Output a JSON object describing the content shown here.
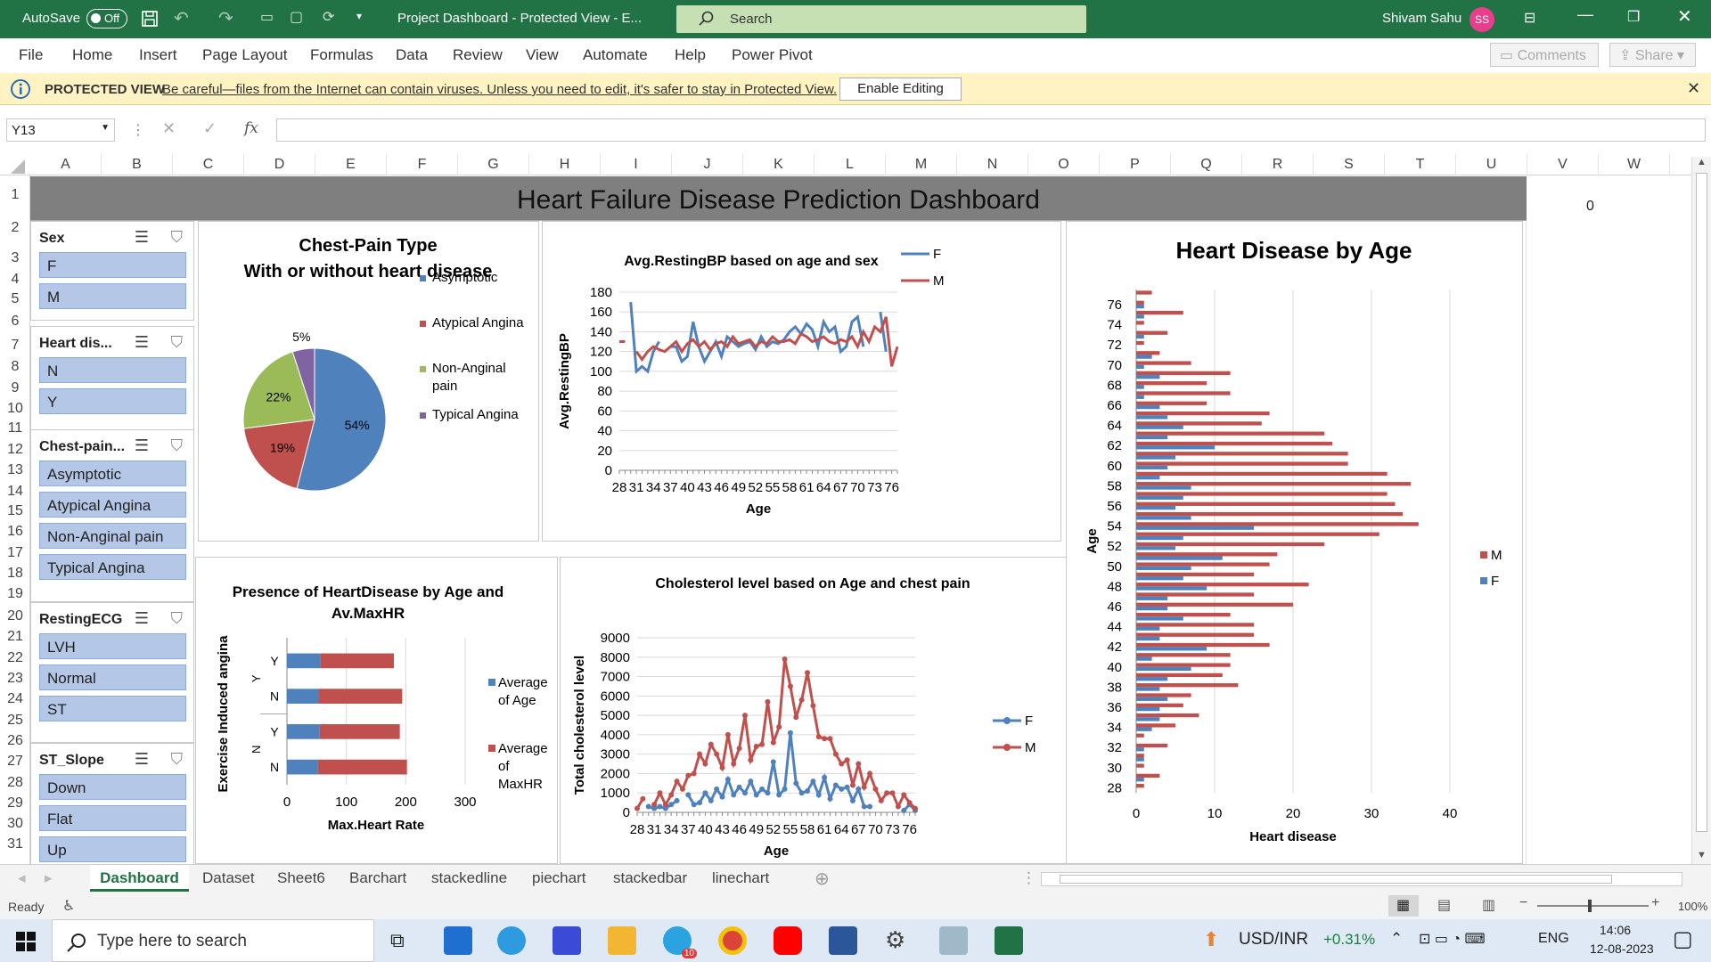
{
  "titlebar": {
    "autosave": "AutoSave",
    "toggle": "Off",
    "doc": "Project Dashboard  -  Protected View  -  E...",
    "search": "Search",
    "user": "Shivam Sahu",
    "initials": "SS"
  },
  "ribbon": {
    "tabs": [
      "File",
      "Home",
      "Insert",
      "Page Layout",
      "Formulas",
      "Data",
      "Review",
      "View",
      "Automate",
      "Help",
      "Power Pivot"
    ],
    "comments": "Comments",
    "share": "Share"
  },
  "protected": {
    "label": "PROTECTED VIEW",
    "message": "Be careful—files from the Internet can contain viruses. Unless you need to edit, it's safer to stay in Protected View.",
    "button": "Enable Editing"
  },
  "formula": {
    "namebox": "Y13",
    "fx": "fx",
    "value": ""
  },
  "columns": [
    "A",
    "B",
    "C",
    "D",
    "E",
    "F",
    "G",
    "H",
    "I",
    "J",
    "K",
    "L",
    "M",
    "N",
    "O",
    "P",
    "Q",
    "R",
    "S",
    "T",
    "U",
    "V",
    "W"
  ],
  "rows": [
    "1",
    "2",
    "3",
    "4",
    "5",
    "6",
    "7",
    "8",
    "9",
    "10",
    "11",
    "12",
    "13",
    "14",
    "15",
    "16",
    "17",
    "18",
    "19",
    "20",
    "21",
    "22",
    "23",
    "24",
    "25",
    "26",
    "27",
    "28",
    "29",
    "30",
    "31"
  ],
  "dashboard_title": "Heart Failure Disease Prediction Dashboard",
  "cell_v1": "0",
  "slicers": [
    {
      "title": "Sex",
      "items": [
        "F",
        "M"
      ]
    },
    {
      "title": "Heart dis...",
      "items": [
        "N",
        "Y"
      ]
    },
    {
      "title": "Chest-pain...",
      "items": [
        "Asymptotic",
        "Atypical Angina",
        "Non-Anginal pain",
        "Typical Angina"
      ]
    },
    {
      "title": "RestingECG",
      "items": [
        "LVH",
        "Normal",
        "ST"
      ]
    },
    {
      "title": "ST_Slope",
      "items": [
        "Down",
        "Flat",
        "Up"
      ]
    }
  ],
  "chart_data": [
    {
      "type": "pie",
      "title": "Chest-Pain Type\nWith or without heart disease",
      "title_lines": [
        "Chest-Pain Type",
        "With or without heart disease"
      ],
      "slices": [
        {
          "label": "Asymptotic",
          "value": 54,
          "color": "#4f81bd"
        },
        {
          "label": "Atypical Angina",
          "value": 19,
          "color": "#c0504d"
        },
        {
          "label": "Non-Anginal pain",
          "value": 22,
          "color": "#9bbb59"
        },
        {
          "label": "Typical Angina",
          "value": 5,
          "color": "#8064a2"
        }
      ],
      "data_labels": [
        "54%",
        "19%",
        "22%",
        "5%"
      ],
      "legend": "right"
    },
    {
      "type": "line",
      "title": "Avg.RestingBP based on age and sex",
      "xlabel": "Age",
      "ylabel": "Avg.RestingBP",
      "ylim": [
        0,
        180
      ],
      "yticks": [
        "0",
        "20",
        "40",
        "60",
        "80",
        "100",
        "120",
        "140",
        "160",
        "180"
      ],
      "xticks": [
        "28",
        "31",
        "34",
        "37",
        "40",
        "43",
        "46",
        "49",
        "52",
        "55",
        "58",
        "61",
        "64",
        "67",
        "70",
        "73",
        "76"
      ],
      "x": [
        28,
        29,
        30,
        31,
        32,
        33,
        34,
        35,
        36,
        37,
        38,
        39,
        40,
        41,
        42,
        43,
        44,
        45,
        46,
        47,
        48,
        49,
        50,
        51,
        52,
        53,
        54,
        55,
        56,
        57,
        58,
        59,
        60,
        61,
        62,
        63,
        64,
        65,
        66,
        67,
        68,
        69,
        70,
        71,
        72,
        73,
        74,
        75,
        76,
        77
      ],
      "series": [
        {
          "name": "F",
          "color": "#4f81bd",
          "values": [
            null,
            null,
            170,
            100,
            105,
            100,
            120,
            130,
            null,
            125,
            125,
            110,
            115,
            150,
            125,
            110,
            120,
            130,
            115,
            135,
            130,
            125,
            128,
            130,
            122,
            135,
            125,
            130,
            128,
            132,
            140,
            145,
            138,
            148,
            142,
            125,
            150,
            140,
            145,
            120,
            125,
            150,
            155,
            125,
            null,
            null,
            160,
            120,
            null,
            null
          ]
        },
        {
          "name": "M",
          "color": "#c0504d",
          "values": [
            130,
            130,
            null,
            120,
            112,
            120,
            125,
            122,
            120,
            125,
            130,
            120,
            128,
            132,
            125,
            130,
            122,
            128,
            130,
            125,
            135,
            128,
            130,
            132,
            125,
            130,
            128,
            135,
            130,
            130,
            132,
            128,
            138,
            135,
            130,
            132,
            135,
            130,
            128,
            132,
            130,
            135,
            125,
            140,
            130,
            145,
            140,
            155,
            105,
            125
          ]
        }
      ],
      "legend": "top-right"
    },
    {
      "type": "bar",
      "title": "Heart Disease by Age",
      "xlabel": "Heart disease",
      "ylabel": "Age",
      "xlim": [
        0,
        40
      ],
      "xticks": [
        "0",
        "10",
        "20",
        "30",
        "40"
      ],
      "yticks": [
        "28",
        "30",
        "32",
        "34",
        "36",
        "38",
        "40",
        "42",
        "44",
        "46",
        "48",
        "50",
        "52",
        "54",
        "56",
        "58",
        "60",
        "62",
        "64",
        "66",
        "68",
        "70",
        "72",
        "74",
        "76"
      ],
      "categories": [
        28,
        29,
        30,
        31,
        32,
        33,
        34,
        35,
        36,
        37,
        38,
        39,
        40,
        41,
        42,
        43,
        44,
        45,
        46,
        47,
        48,
        49,
        50,
        51,
        52,
        53,
        54,
        55,
        56,
        57,
        58,
        59,
        60,
        61,
        62,
        63,
        64,
        65,
        66,
        67,
        68,
        69,
        70,
        71,
        72,
        73,
        74,
        75,
        76,
        77
      ],
      "series": [
        {
          "name": "M",
          "color": "#c0504d",
          "values": [
            1,
            3,
            1,
            1,
            4,
            1,
            5,
            8,
            6,
            7,
            13,
            11,
            12,
            12,
            17,
            15,
            15,
            12,
            20,
            15,
            22,
            15,
            17,
            18,
            24,
            31,
            36,
            34,
            33,
            32,
            35,
            32,
            27,
            27,
            25,
            24,
            16,
            17,
            9,
            12,
            9,
            12,
            7,
            3,
            1,
            4,
            1,
            6,
            1,
            2
          ]
        },
        {
          "name": "F",
          "color": "#4f81bd",
          "values": [
            0,
            1,
            0,
            1,
            1,
            0,
            2,
            3,
            3,
            4,
            3,
            4,
            7,
            2,
            9,
            3,
            3,
            6,
            4,
            4,
            9,
            6,
            7,
            11,
            5,
            6,
            15,
            7,
            5,
            6,
            7,
            3,
            4,
            5,
            10,
            4,
            6,
            4,
            3,
            1,
            1,
            3,
            1,
            2,
            0,
            1,
            0,
            1,
            1,
            0
          ]
        }
      ],
      "legend": "right"
    },
    {
      "type": "bar",
      "title": "Presence of HeartDisease by Age and Av.MaxHR",
      "title_lines": [
        "Presence of HeartDisease by Age and",
        "Av.MaxHR"
      ],
      "xlabel": "Max.Heart Rate",
      "ylabel": "Exercise Induced angina",
      "xlim": [
        0,
        300
      ],
      "xticks": [
        "0",
        "100",
        "200",
        "300"
      ],
      "categories": [
        "N",
        "Y",
        "N",
        "Y"
      ],
      "groups": [
        "N",
        "Y"
      ],
      "series": [
        {
          "name": "Average of Age",
          "legend_lines": [
            "Average",
            "of Age"
          ],
          "color": "#4f81bd",
          "values": [
            52,
            55,
            54,
            56
          ]
        },
        {
          "name": "Average of MaxHR",
          "legend_lines": [
            "Average",
            "of",
            "MaxHR"
          ],
          "color": "#c0504d",
          "values": [
            150,
            135,
            140,
            124
          ]
        }
      ],
      "legend": "right"
    },
    {
      "type": "line",
      "title": "Cholesterol level based on Age and chest pain",
      "xlabel": "Age",
      "ylabel": "Total cholesterol level",
      "ylim": [
        0,
        9000
      ],
      "yticks": [
        "0",
        "1000",
        "2000",
        "3000",
        "4000",
        "5000",
        "6000",
        "7000",
        "8000",
        "9000"
      ],
      "xticks": [
        "28",
        "31",
        "34",
        "37",
        "40",
        "43",
        "46",
        "49",
        "52",
        "55",
        "58",
        "61",
        "64",
        "67",
        "70",
        "73",
        "76"
      ],
      "x": [
        28,
        29,
        30,
        31,
        32,
        33,
        34,
        35,
        36,
        37,
        38,
        39,
        40,
        41,
        42,
        43,
        44,
        45,
        46,
        47,
        48,
        49,
        50,
        51,
        52,
        53,
        54,
        55,
        56,
        57,
        58,
        59,
        60,
        61,
        62,
        63,
        64,
        65,
        66,
        67,
        68,
        69,
        70,
        71,
        72,
        73,
        74,
        75,
        76,
        77
      ],
      "series": [
        {
          "name": "F",
          "color": "#4f81bd",
          "values": [
            null,
            null,
            300,
            200,
            300,
            200,
            400,
            600,
            null,
            900,
            400,
            500,
            1000,
            600,
            1200,
            800,
            1700,
            900,
            1300,
            1000,
            1600,
            900,
            1200,
            1000,
            2600,
            900,
            1200,
            4100,
            1500,
            1000,
            1100,
            1600,
            900,
            1800,
            700,
            1400,
            1200,
            1300,
            600,
            1200,
            300,
            300,
            null,
            null,
            null,
            null,
            null,
            100,
            400,
            100
          ]
        },
        {
          "name": "M",
          "color": "#c0504d",
          "values": [
            200,
            700,
            null,
            400,
            1000,
            400,
            900,
            1600,
            1200,
            1900,
            2000,
            3000,
            2500,
            3500,
            3000,
            2300,
            4000,
            2500,
            3300,
            5000,
            2700,
            3400,
            3500,
            5700,
            3600,
            4400,
            7900,
            6500,
            4900,
            5800,
            7200,
            5500,
            3900,
            3800,
            3800,
            3000,
            2500,
            2700,
            1400,
            2500,
            1300,
            2000,
            1200,
            600,
            1000,
            1000,
            300,
            900,
            500,
            200
          ]
        }
      ],
      "legend": "right"
    }
  ],
  "sheet_tabs": [
    "Dashboard",
    "Dataset",
    "Sheet6",
    "Barchart",
    "stackedline",
    "piechart",
    "stackedbar",
    "linechart"
  ],
  "status": {
    "ready": "Ready",
    "zoom": "100%"
  },
  "taskbar": {
    "search": "Type here to search",
    "currency": "USD/INR",
    "change": "+0.31%",
    "lang": "ENG",
    "time": "14:06",
    "date": "12-08-2023",
    "telegram_badge": "10"
  }
}
